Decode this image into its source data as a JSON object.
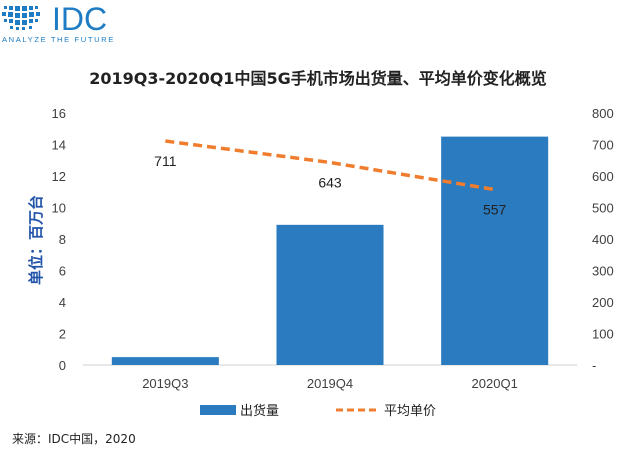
{
  "logo": {
    "brand": "IDC",
    "tagline": "ANALYZE THE FUTURE",
    "brand_color": "#1d7cc4"
  },
  "chart_data": {
    "type": "bar",
    "title": "2019Q3-2020Q1中国5G手机市场出货量、平均单价变化概览",
    "ylabel": "单位：百万台",
    "categories": [
      "2019Q3",
      "2019Q4",
      "2020Q1"
    ],
    "ylim": [
      0,
      16
    ],
    "y_ticks": [
      "0",
      "2",
      "4",
      "6",
      "8",
      "10",
      "12",
      "14",
      "16"
    ],
    "y2lim": [
      0,
      800
    ],
    "y2_ticks": [
      "-",
      "100",
      "200",
      "300",
      "400",
      "500",
      "600",
      "700",
      "800"
    ],
    "series": [
      {
        "name": "出货量",
        "type": "bar",
        "axis": "left",
        "color": "#2a7bc0",
        "values": [
          0.5,
          8.9,
          14.5
        ]
      },
      {
        "name": "平均单价",
        "type": "line",
        "axis": "right",
        "style": "dashed",
        "color": "#f07d2e",
        "values": [
          711,
          643,
          557
        ],
        "labels": [
          "711",
          "643",
          "557"
        ]
      }
    ],
    "legend_position": "bottom",
    "grid": false
  },
  "source": "来源：IDC中国，2020"
}
